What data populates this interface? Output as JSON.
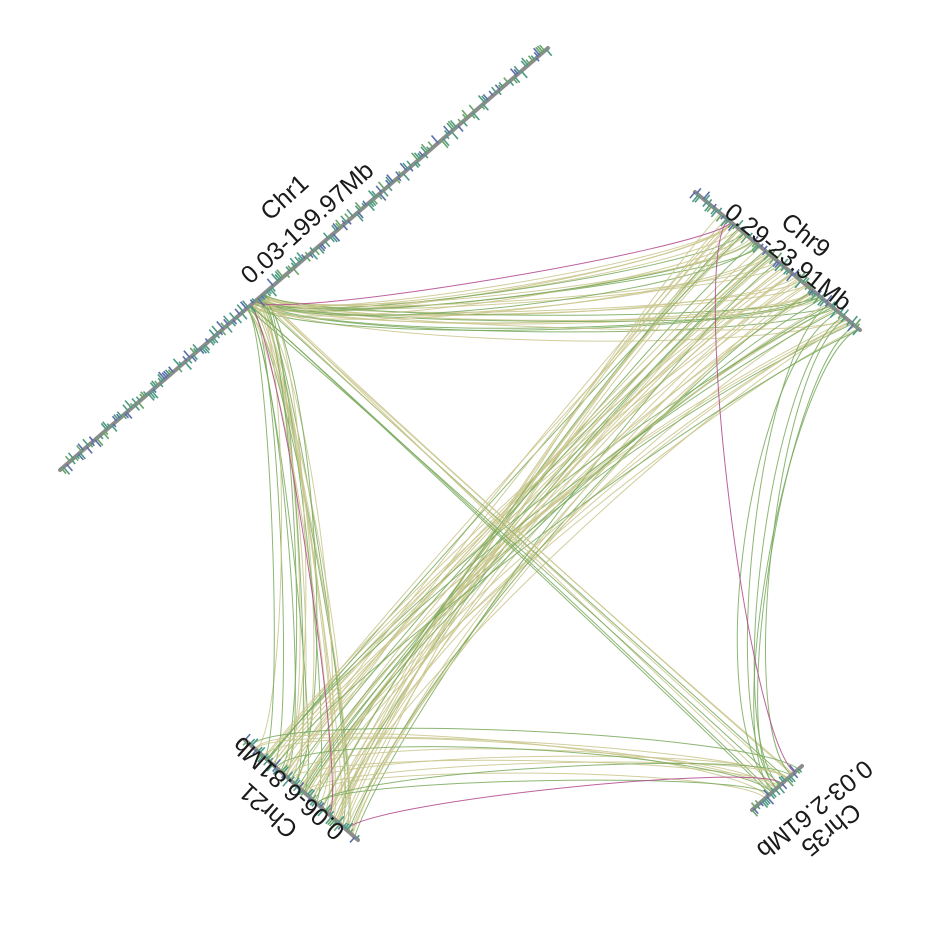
{
  "colors": {
    "link_olive": "#c9c68c",
    "link_green": "#78a95c",
    "link_magenta": "#b0468c",
    "gene_teal": "#4f9a85",
    "gene_blue": "#5a6fa8",
    "gene_green": "#6aa46a",
    "backbone": "#8c8c8c",
    "label": "#1a1a1a",
    "background": "#ffffff"
  },
  "chromosomes": [
    {
      "id": "chr1",
      "name": "Chr1",
      "range": "0.03-199.97Mb"
    },
    {
      "id": "chr9",
      "name": "Chr9",
      "range": "0.29-23.91Mb"
    },
    {
      "id": "chr21",
      "name": "Chr21",
      "range": "0.06-6.81Mb"
    },
    {
      "id": "chr35",
      "name": "Chr35",
      "range": "0.03-2.61Mb"
    }
  ]
}
